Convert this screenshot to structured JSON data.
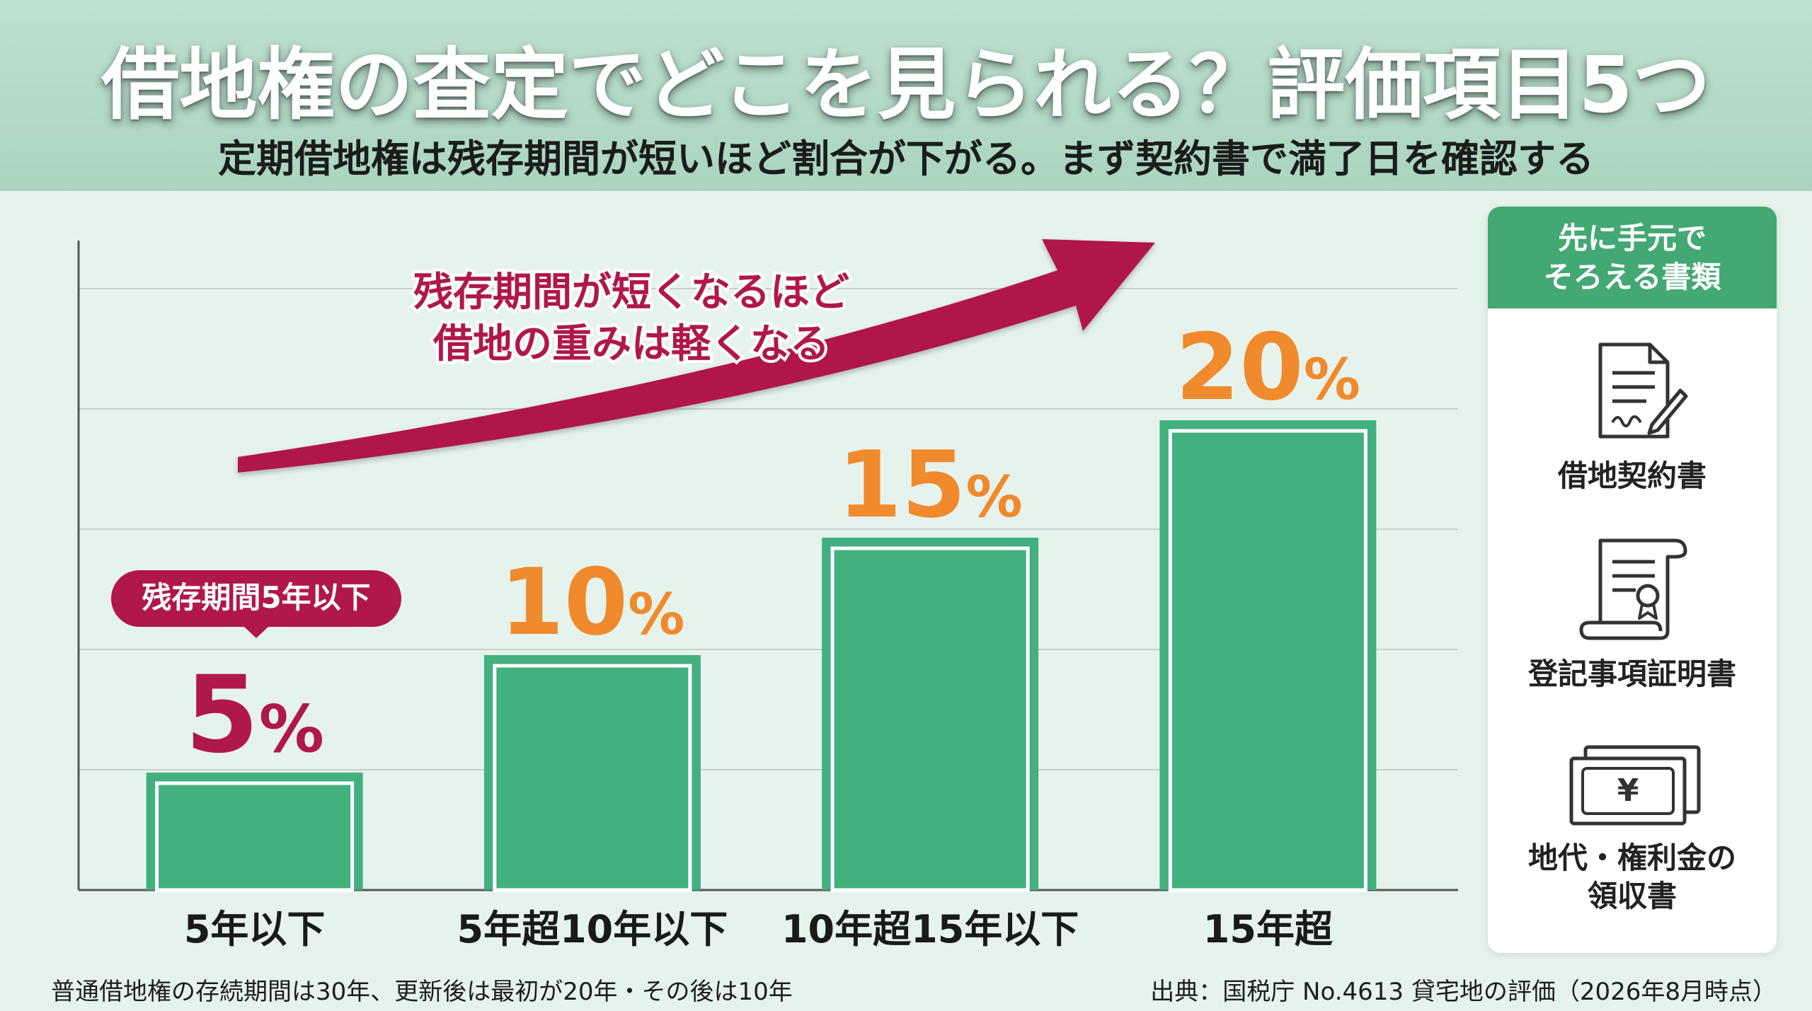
{
  "header": {
    "title": "借地権の査定でどこを見られる？評価項目5つ",
    "subtitle": "定期借地権は残存期間が短いほど割合が下がる。まず契約書で満了日を確認する"
  },
  "chart_data": {
    "type": "bar",
    "categories": [
      "5年以下",
      "5年超10年以下",
      "10年超15年以下",
      "15年超"
    ],
    "values": [
      5,
      10,
      15,
      20
    ],
    "value_labels": [
      {
        "num": "5",
        "unit": "%"
      },
      {
        "num": "10",
        "unit": "%"
      },
      {
        "num": "15",
        "unit": "%"
      },
      {
        "num": "20",
        "unit": "%"
      }
    ],
    "ylim": [
      0,
      27.5
    ],
    "grid": true,
    "bar_color": "#43b07f",
    "label_colors": [
      "#b0174a",
      "#f08a2c",
      "#f08a2c",
      "#f08a2c"
    ],
    "callout": "残存期間5年以下",
    "arrow_text": [
      "残存期間が短くなるほど",
      "借地の重みは軽くなる"
    ],
    "arrow_color": "#b0174a"
  },
  "side_panel": {
    "title_lines": [
      "先に手元で",
      "そろえる書類"
    ],
    "documents": [
      {
        "icon": "contract-document-icon",
        "label": "借地契約書"
      },
      {
        "icon": "certificate-scroll-icon",
        "label": "登記事項証明書"
      },
      {
        "icon": "yen-banknote-icon",
        "label_lines": [
          "地代・権利金の",
          "領収書"
        ]
      }
    ]
  },
  "footnotes": {
    "left": "普通借地権の存続期間は30年、更新後は最初が20年・その後は10年",
    "right": "出典：国税庁 No.4613 貸宅地の評価（2026年8月時点）"
  }
}
